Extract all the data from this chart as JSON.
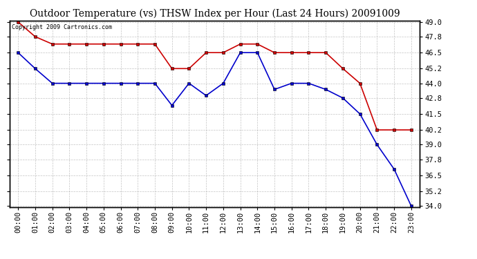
{
  "title": "Outdoor Temperature (vs) THSW Index per Hour (Last 24 Hours) 20091009",
  "copyright_text": "Copyright 2009 Cartronics.com",
  "hours": [
    "00:00",
    "01:00",
    "02:00",
    "03:00",
    "04:00",
    "05:00",
    "06:00",
    "07:00",
    "08:00",
    "09:00",
    "10:00",
    "11:00",
    "12:00",
    "13:00",
    "14:00",
    "15:00",
    "16:00",
    "17:00",
    "18:00",
    "19:00",
    "20:00",
    "21:00",
    "22:00",
    "23:00"
  ],
  "temp_blue": [
    46.5,
    45.2,
    44.0,
    44.0,
    44.0,
    44.0,
    44.0,
    44.0,
    44.0,
    42.2,
    44.0,
    43.0,
    44.0,
    46.5,
    46.5,
    43.5,
    44.0,
    44.0,
    43.5,
    42.8,
    41.5,
    39.0,
    37.0,
    34.0
  ],
  "thsw_red": [
    49.0,
    47.8,
    47.2,
    47.2,
    47.2,
    47.2,
    47.2,
    47.2,
    47.2,
    45.2,
    45.2,
    46.5,
    46.5,
    47.2,
    47.2,
    46.5,
    46.5,
    46.5,
    46.5,
    45.2,
    44.0,
    40.2,
    40.2,
    40.2
  ],
  "ylim_min": 34.0,
  "ylim_max": 49.0,
  "yticks": [
    34.0,
    35.2,
    36.5,
    37.8,
    39.0,
    40.2,
    41.5,
    42.8,
    44.0,
    45.2,
    46.5,
    47.8,
    49.0
  ],
  "blue_color": "#0000cc",
  "red_color": "#cc0000",
  "bg_color": "#ffffff",
  "grid_color": "#aaaaaa",
  "title_fontsize": 10,
  "copy_fontsize": 6,
  "tick_fontsize": 7.5
}
